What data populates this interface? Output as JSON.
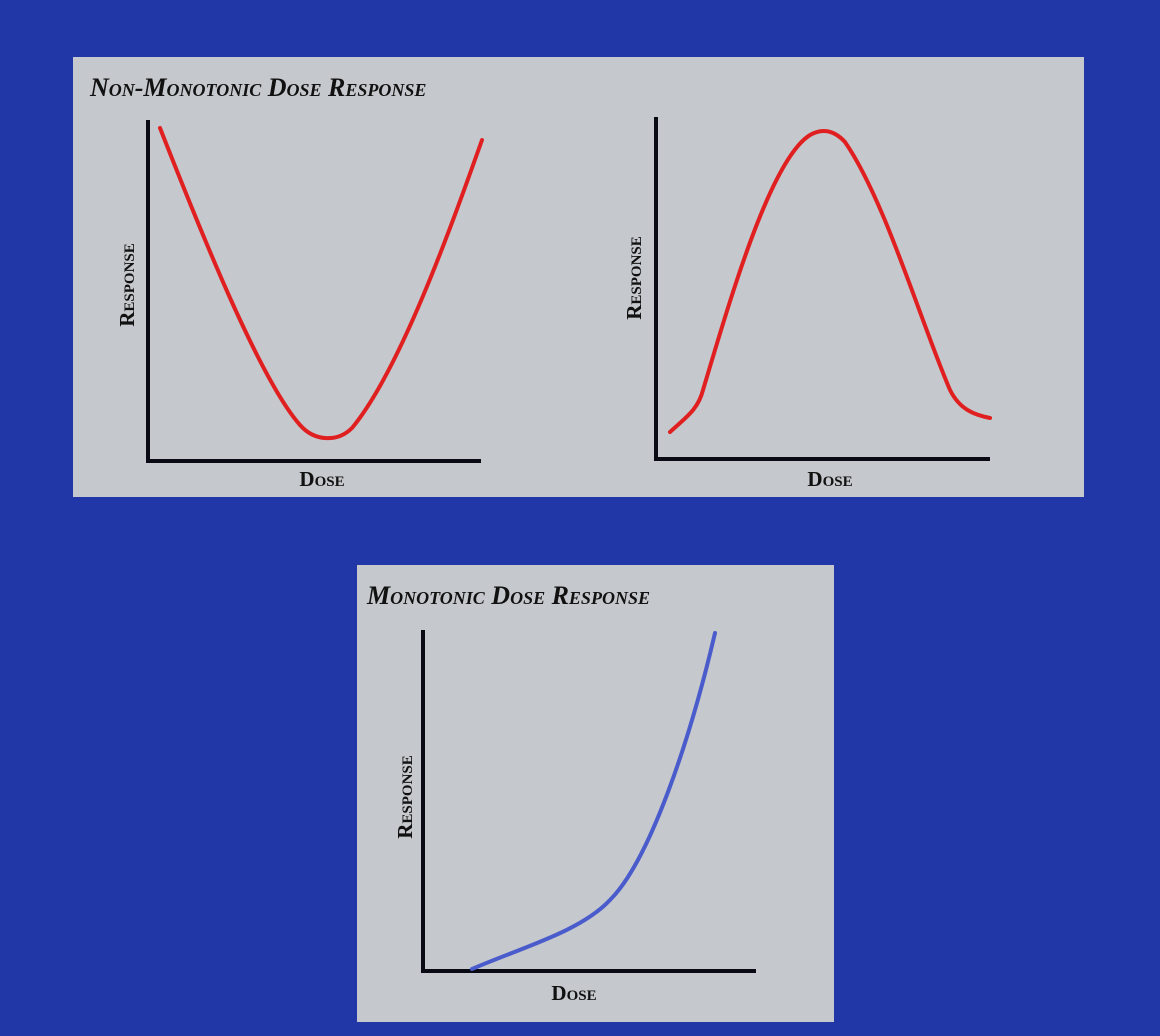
{
  "top_panel": {
    "title": "Non-Monotonic Dose Response",
    "charts": [
      {
        "y_label": "Response",
        "x_label": "Dose"
      },
      {
        "y_label": "Response",
        "x_label": "Dose"
      }
    ]
  },
  "bottom_panel": {
    "title": "Monotonic Dose Response",
    "chart": {
      "y_label": "Response",
      "x_label": "Dose"
    }
  }
}
